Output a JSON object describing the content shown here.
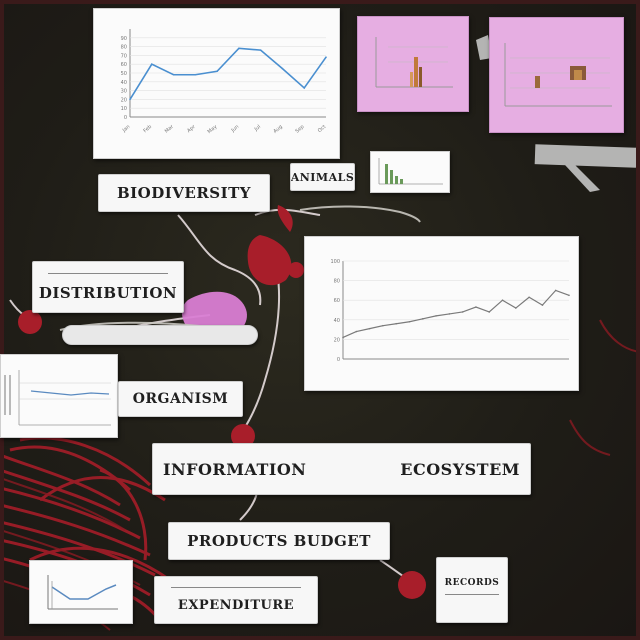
{
  "labels": {
    "biodiversity": "BIODIVERSITY",
    "distribution": "DISTRIBUTION",
    "animals": "ANIMALS",
    "organism": "ORGANISM",
    "information": "INFORMATION",
    "ecosystem": "ECOSYSTEM",
    "products_budget": "PRODUCTS BUDGET",
    "expenditure": "EXPENDITURE",
    "records": "RECORDS"
  },
  "chart_data": [
    {
      "type": "line",
      "x": [
        "Jan",
        "Feb",
        "Mar",
        "Apr",
        "May",
        "Jun",
        "Jul",
        "Aug",
        "Sep",
        "Oct"
      ],
      "series": [
        {
          "values": [
            20,
            60,
            48,
            48,
            52,
            78,
            76,
            55,
            33,
            68
          ]
        }
      ],
      "ylim": [
        0,
        100
      ],
      "yticks": [
        0,
        10,
        20,
        30,
        40,
        50,
        60,
        70,
        80,
        90
      ],
      "grid": true,
      "color": "#4a8fd0"
    },
    {
      "type": "line",
      "x": [
        1,
        2,
        3,
        4,
        5,
        6,
        7,
        8,
        9,
        10,
        11,
        12,
        13,
        14,
        15,
        16,
        17,
        18
      ],
      "series": [
        {
          "values": [
            22,
            28,
            31,
            34,
            36,
            38,
            41,
            44,
            46,
            48,
            53,
            48,
            60,
            52,
            63,
            55,
            70,
            65
          ]
        }
      ],
      "ylim": [
        0,
        100
      ],
      "yticks": [
        0,
        20,
        40,
        60,
        80,
        100
      ],
      "grid": true,
      "color": "#7a7a7a"
    }
  ],
  "colors": {
    "background": "#1f1d17",
    "vine": "#b01e28",
    "pink_note": "#e6aee2"
  }
}
